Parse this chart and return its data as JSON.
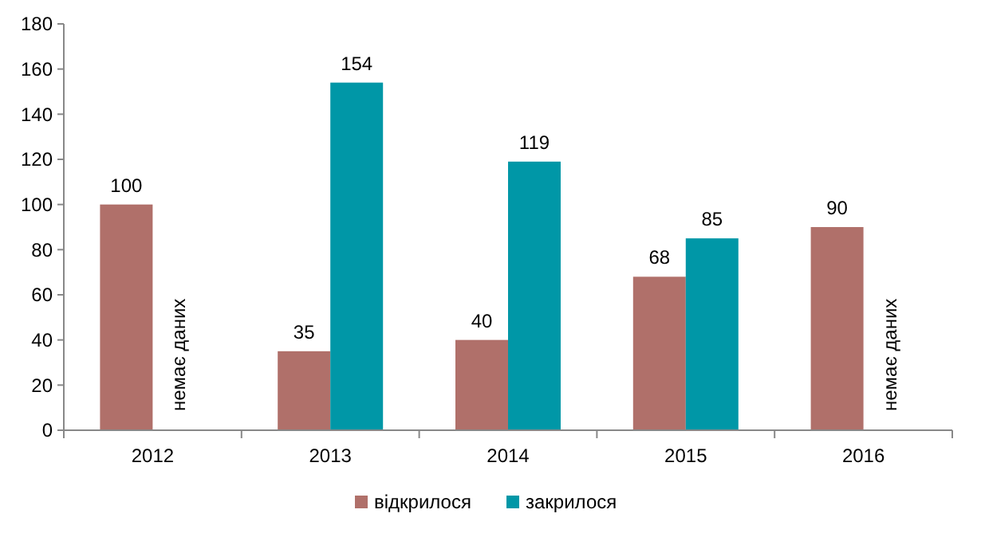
{
  "chart_data": {
    "type": "bar",
    "categories": [
      "2012",
      "2013",
      "2014",
      "2015",
      "2016"
    ],
    "series": [
      {
        "name": "відкрилося",
        "color": "#b0706a",
        "values": [
          100,
          35,
          40,
          68,
          90
        ]
      },
      {
        "name": "закрилося",
        "color": "#0097a7",
        "values": [
          null,
          154,
          119,
          85,
          null
        ]
      }
    ],
    "ylim": [
      0,
      180
    ],
    "yticks": [
      0,
      20,
      40,
      60,
      80,
      100,
      120,
      140,
      160,
      180
    ],
    "grid": false,
    "legend": "bottom",
    "data_labels": true,
    "annotations": [
      {
        "text": "немає даних",
        "x": "2012"
      },
      {
        "text": "немає даних",
        "x": "2016"
      }
    ]
  }
}
